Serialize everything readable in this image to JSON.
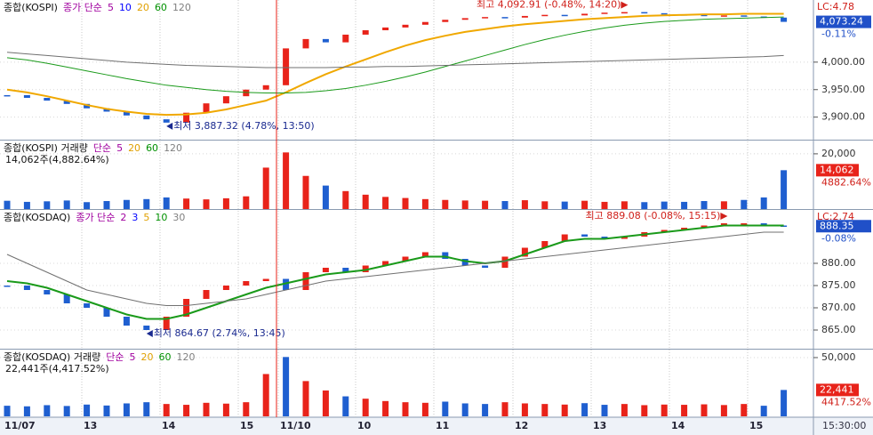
{
  "chart_data": [
    {
      "type": "candlestick",
      "title": "종합(KOSPI)",
      "ma_title": "종가 단순",
      "ma_periods": [
        {
          "label": "5",
          "color": "#a0009f"
        },
        {
          "label": "10",
          "color": "#0000ff"
        },
        {
          "label": "20",
          "color": "#e0a000"
        },
        {
          "label": "60",
          "color": "#009000"
        },
        {
          "label": "120",
          "color": "#808080"
        }
      ],
      "up_color": "#e8231a",
      "down_color": "#1f5fd0",
      "values": [
        3940,
        3935,
        3930,
        3924,
        3916,
        3910,
        3903,
        3896,
        3890,
        3908,
        3925,
        3938,
        3950,
        3958,
        4025,
        4042,
        4036,
        4050,
        4058,
        4063,
        4068,
        4073,
        4077,
        4080,
        4082,
        4081,
        4084,
        4086,
        4085,
        4088,
        4090,
        4091,
        4089,
        4087,
        4086,
        4084,
        4085,
        4083,
        4081,
        4073.24
      ],
      "series": [
        {
          "color": "#f0a800",
          "values": [
            3950,
            3945,
            3938,
            3930,
            3922,
            3915,
            3910,
            3906,
            3904,
            3905,
            3908,
            3914,
            3922,
            3930,
            3945,
            3962,
            3978,
            3992,
            4005,
            4018,
            4030,
            4040,
            4048,
            4055,
            4060,
            4065,
            4069,
            4072,
            4075,
            4078,
            4080,
            4082,
            4084,
            4085,
            4086,
            4087,
            4087,
            4088,
            4088,
            4088
          ]
        },
        {
          "color": "#1a9a1a",
          "values": [
            4008,
            4004,
            3998,
            3991,
            3984,
            3977,
            3970,
            3964,
            3958,
            3954,
            3950,
            3947,
            3945,
            3944,
            3944,
            3945,
            3948,
            3952,
            3958,
            3965,
            3973,
            3982,
            3992,
            4002,
            4012,
            4022,
            4032,
            4041,
            4049,
            4056,
            4062,
            4067,
            4071,
            4074,
            4076,
            4078,
            4079,
            4080,
            4081,
            4082
          ]
        },
        {
          "color": "#707070",
          "values": [
            4018,
            4015,
            4012,
            4009,
            4006,
            4003,
            4000,
            3998,
            3996,
            3994,
            3993,
            3992,
            3991,
            3990,
            3990,
            3990,
            3990,
            3991,
            3991,
            3992,
            3992,
            3993,
            3994,
            3995,
            3996,
            3997,
            3998,
            3999,
            4000,
            4001,
            4002,
            4003,
            4004,
            4005,
            4006,
            4007,
            4008,
            4009,
            4010,
            4012
          ]
        }
      ],
      "ylim": [
        3859,
        4113
      ],
      "yticks": [
        {
          "value": 4000,
          "label": "4,000.00"
        },
        {
          "value": 3950,
          "label": "3,950.00"
        },
        {
          "value": 3900,
          "label": "3,900.00"
        }
      ],
      "high_label": "최고 4,092.91 (-0.48%, 14:20)",
      "low_label": "최저 3,887.32 (4.78%, 13:50)",
      "lc_label": "LC:4.78",
      "last": {
        "value": 4073.24,
        "label": "4,073.24"
      },
      "change_label": "-0.11%"
    },
    {
      "type": "bar",
      "title": "종합(KOSPI) 거래량",
      "ma_title": "단순",
      "ma_periods": [
        {
          "label": "5",
          "color": "#a0009f"
        },
        {
          "label": "20",
          "color": "#e0a000"
        },
        {
          "label": "60",
          "color": "#009000"
        },
        {
          "label": "120",
          "color": "#808080"
        }
      ],
      "info": "14,062주(4,882.64%)",
      "values": [
        3000,
        2600,
        2800,
        3100,
        2500,
        2900,
        3300,
        3600,
        4200,
        3800,
        3500,
        3900,
        4600,
        15000,
        20500,
        12000,
        8500,
        6500,
        5200,
        4400,
        4000,
        3600,
        3300,
        3100,
        3000,
        2900,
        3200,
        2800,
        2700,
        3000,
        2600,
        2800,
        2500,
        2700,
        2600,
        2900,
        2800,
        3300,
        4200,
        14062
      ],
      "ylim": [
        0,
        24800
      ],
      "yticks": [
        {
          "value": 20000,
          "label": "20,000"
        }
      ],
      "last": {
        "value": 14062,
        "label": "14,062"
      },
      "change_label": "4882.64%"
    },
    {
      "type": "candlestick",
      "title": "종합(KOSDAQ)",
      "ma_title": "종가 단순",
      "ma_periods": [
        {
          "label": "2",
          "color": "#a0009f"
        },
        {
          "label": "3",
          "color": "#0000ff"
        },
        {
          "label": "5",
          "color": "#e0a000"
        },
        {
          "label": "10",
          "color": "#009000"
        },
        {
          "label": "30",
          "color": "#808080"
        }
      ],
      "up_color": "#e8231a",
      "down_color": "#1f5fd0",
      "values": [
        875,
        874,
        873,
        871,
        870,
        868,
        866,
        865,
        868,
        872,
        874,
        875,
        876,
        876.5,
        874,
        878,
        879,
        878,
        879.5,
        880.5,
        881.5,
        882.5,
        881,
        879.5,
        879,
        881.5,
        883.5,
        885,
        886.5,
        886,
        885.5,
        886,
        887,
        887.5,
        888,
        888.5,
        889,
        889,
        888.5,
        888.35
      ],
      "series": [
        {
          "color": "#1a9a1a",
          "values": [
            876,
            875.5,
            874.5,
            873,
            871.5,
            870,
            868.5,
            867.5,
            867.5,
            868.5,
            870,
            871.5,
            873,
            874.5,
            875.5,
            876.5,
            877.5,
            878,
            878.5,
            879.5,
            880.5,
            881.5,
            881.5,
            880.5,
            880,
            880.5,
            882,
            883.5,
            885,
            885.5,
            885.5,
            886,
            886.5,
            887,
            887.5,
            888,
            888.5,
            888.5,
            888.5,
            888.5
          ]
        },
        {
          "color": "#707070",
          "values": [
            882,
            880,
            878,
            876,
            874,
            873,
            872,
            871,
            870.5,
            870.5,
            871,
            871.5,
            872,
            873,
            874,
            875,
            876,
            876.5,
            877,
            877.5,
            878,
            878.5,
            879,
            879.5,
            880,
            880.5,
            881,
            881.5,
            882,
            882.5,
            883,
            883.5,
            884,
            884.5,
            885,
            885.5,
            886,
            886.5,
            887,
            887
          ]
        }
      ],
      "ylim": [
        860.8,
        892
      ],
      "yticks": [
        {
          "value": 880,
          "label": "880.00"
        },
        {
          "value": 875,
          "label": "875.00"
        },
        {
          "value": 870,
          "label": "870.00"
        },
        {
          "value": 865,
          "label": "865.00"
        }
      ],
      "high_label": "최고 889.08 (-0.08%, 15:15)",
      "low_label": "최저 864.67 (2.74%, 13:45)",
      "lc_label": "LC:2.74",
      "last": {
        "value": 888.35,
        "label": "888.35"
      },
      "change_label": "-0.08%"
    },
    {
      "type": "bar",
      "title": "종합(KOSDAQ) 거래량",
      "ma_title": "단순",
      "ma_periods": [
        {
          "label": "5",
          "color": "#a0009f"
        },
        {
          "label": "20",
          "color": "#e0a000"
        },
        {
          "label": "60",
          "color": "#009000"
        },
        {
          "label": "120",
          "color": "#808080"
        }
      ],
      "info": "22,441주(4,417.52%)",
      "values": [
        9000,
        8500,
        9500,
        8800,
        10000,
        9200,
        11000,
        12000,
        10500,
        9800,
        11500,
        10800,
        12000,
        36000,
        50500,
        30000,
        22000,
        17000,
        15000,
        13000,
        12000,
        11500,
        12500,
        11000,
        10500,
        12000,
        11000,
        10500,
        10000,
        11200,
        9800,
        10500,
        9500,
        10000,
        9800,
        10200,
        9600,
        10500,
        9000,
        22441
      ],
      "ylim": [
        0,
        56800
      ],
      "yticks": [
        {
          "value": 50000,
          "label": "50,000"
        }
      ],
      "last": {
        "value": 22441,
        "label": "22,441"
      },
      "change_label": "4417.52%"
    }
  ],
  "x_axis": {
    "labels": [
      "11/07",
      "13",
      "14",
      "15",
      "11/10",
      "10",
      "11",
      "12",
      "13",
      "14",
      "15"
    ],
    "time": "15:30:00"
  }
}
